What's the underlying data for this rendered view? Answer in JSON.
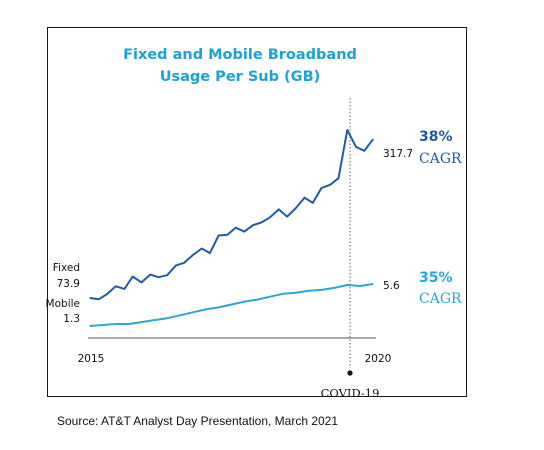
{
  "chart_data": {
    "type": "line",
    "title_lines": [
      "Fixed and Mobile Broadband",
      "Usage Per Sub (GB)"
    ],
    "x_tick_labels": [
      "2015",
      "2020"
    ],
    "xlim": [
      2015,
      2021
    ],
    "ylim": [
      0,
      340
    ],
    "series": [
      {
        "name": "Fixed",
        "color": "#1f5ca6",
        "start_label": "Fixed",
        "start_value_label": "73.9",
        "end_value_label": "317.7",
        "x": [
          2015.0,
          2015.17,
          2015.33,
          2015.5,
          2015.67,
          2015.83,
          2016.0,
          2016.17,
          2016.33,
          2016.5,
          2016.67,
          2016.83,
          2017.0,
          2017.17,
          2017.33,
          2017.5,
          2017.67,
          2017.83,
          2018.0,
          2018.17,
          2018.33,
          2018.5,
          2018.67,
          2018.83,
          2019.0,
          2019.17,
          2019.33,
          2019.5,
          2019.67,
          2019.83,
          2020.0,
          2020.17,
          2020.33,
          2020.5
        ],
        "values": [
          74,
          72,
          80,
          92,
          88,
          107,
          98,
          110,
          106,
          109,
          124,
          128,
          140,
          150,
          143,
          170,
          171,
          182,
          176,
          186,
          190,
          198,
          210,
          199,
          212,
          228,
          220,
          243,
          248,
          258,
          332,
          306,
          300,
          317.7
        ]
      },
      {
        "name": "Mobile",
        "color": "#2aa7d6",
        "start_label": "Mobile",
        "start_value_label": "1.3",
        "end_value_label": "5.6",
        "x": [
          2015.0,
          2015.25,
          2015.5,
          2015.75,
          2016.0,
          2016.25,
          2016.5,
          2016.75,
          2017.0,
          2017.25,
          2017.5,
          2017.75,
          2018.0,
          2018.25,
          2018.5,
          2018.75,
          2019.0,
          2019.25,
          2019.5,
          2019.75,
          2020.0,
          2020.25,
          2020.5
        ],
        "values": [
          1.3,
          1.4,
          1.5,
          1.5,
          1.7,
          1.9,
          2.1,
          2.4,
          2.7,
          3.0,
          3.2,
          3.5,
          3.8,
          4.0,
          4.3,
          4.6,
          4.7,
          4.9,
          5.0,
          5.2,
          5.5,
          5.4,
          5.6
        ]
      }
    ],
    "annotations": [
      {
        "percent": "38%",
        "label": "CAGR",
        "color": "#1f5ca6"
      },
      {
        "percent": "35%",
        "label": "CAGR",
        "color": "#2aa7d6"
      }
    ],
    "event": {
      "label": "COVID-19",
      "x": 2020.0
    }
  },
  "source": "Source: AT&T Analyst Day Presentation, March 2021"
}
